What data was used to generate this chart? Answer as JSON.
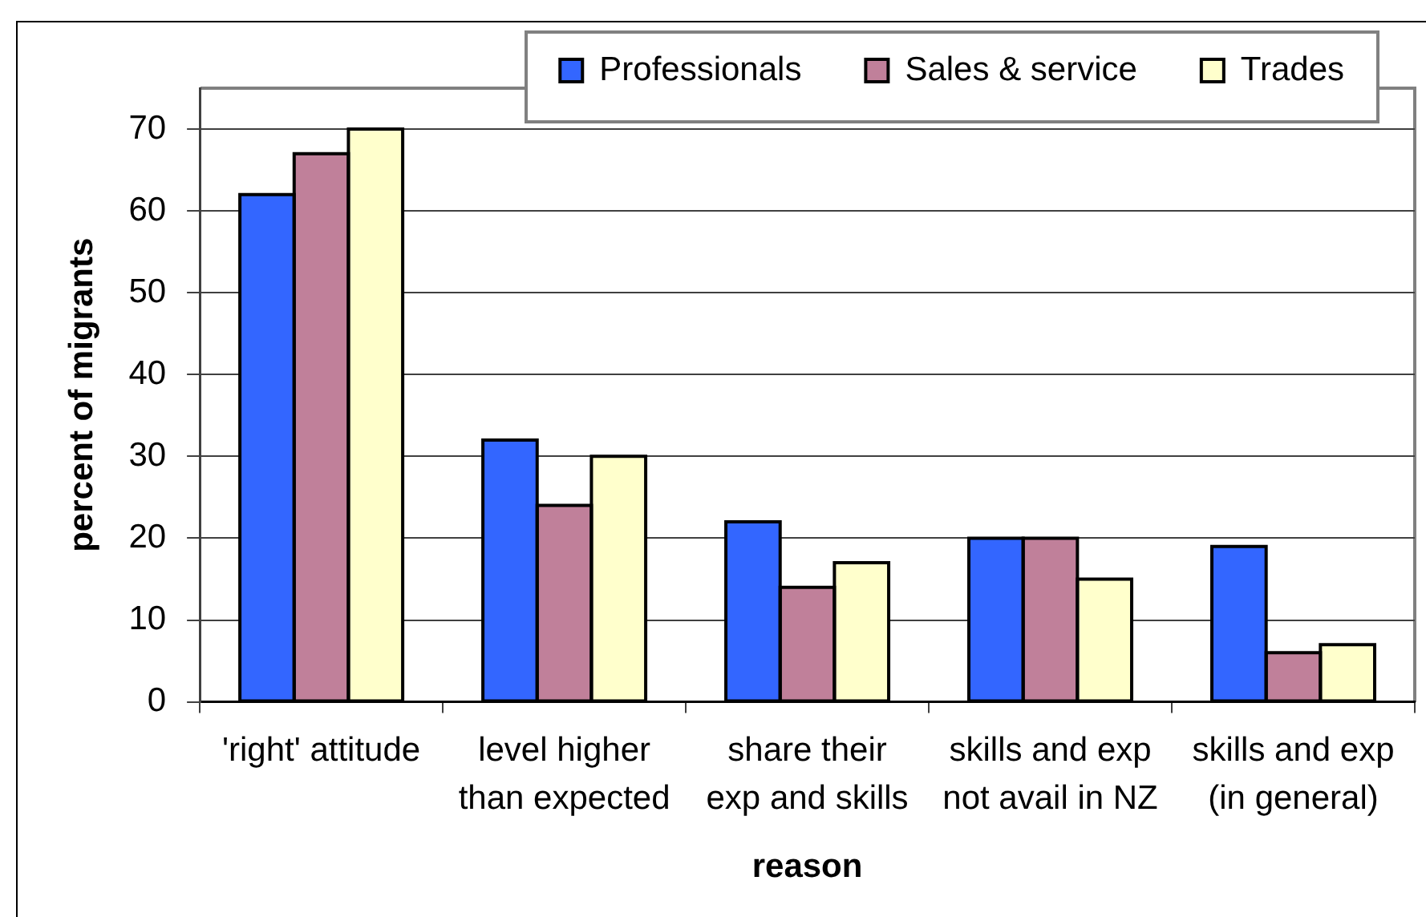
{
  "chart_data": {
    "type": "bar",
    "xlabel": "reason",
    "ylabel": "percent of migrants",
    "categories": [
      "'right' attitude",
      "level higher than expected",
      "share their exp and skills",
      "skills and exp not avail in NZ",
      "skills and exp (in general)"
    ],
    "series": [
      {
        "name": "Professionals",
        "color": "#3366ff",
        "values": [
          62,
          32,
          22,
          20,
          19
        ]
      },
      {
        "name": "Sales & service",
        "color": "#c0809a",
        "values": [
          67,
          24,
          14,
          20,
          6
        ]
      },
      {
        "name": "Trades",
        "color": "#ffffcc",
        "values": [
          70,
          30,
          17,
          15,
          7
        ]
      }
    ],
    "ylim": [
      0,
      75
    ],
    "yticks": [
      0,
      10,
      20,
      30,
      40,
      50,
      60,
      70
    ],
    "grid": "y",
    "legend": "top right"
  }
}
